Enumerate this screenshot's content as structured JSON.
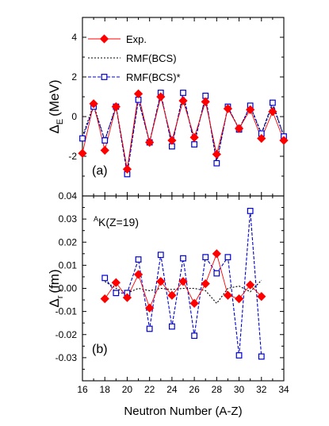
{
  "chart_data": [
    {
      "type": "line",
      "panel_label": "(a)",
      "ylabel_main": "Δ",
      "ylabel_sub": "E",
      "ylabel_unit": "(MeV)",
      "xlim": [
        16,
        34
      ],
      "ylim": [
        -4,
        5
      ],
      "yticks": [
        -4,
        -2,
        0,
        2,
        4
      ],
      "ytick_labels": [
        "",
        "-2",
        "0",
        "2",
        "4"
      ],
      "grid": false,
      "legend_position": "top-left",
      "series": [
        {
          "name": "Exp.",
          "style": "solid",
          "marker": "filled-diamond",
          "color": "#ff0000",
          "x": [
            16,
            17,
            18,
            19,
            20,
            21,
            22,
            23,
            24,
            25,
            26,
            27,
            28,
            29,
            30,
            31,
            32,
            33,
            34
          ],
          "y": [
            -1.85,
            0.65,
            -1.7,
            0.5,
            -2.65,
            1.15,
            -1.3,
            1.0,
            -1.2,
            0.8,
            -1.05,
            0.75,
            -1.9,
            0.4,
            -0.6,
            0.35,
            -1.1,
            0.25,
            -1.2
          ]
        },
        {
          "name": "RMF(BCS)",
          "style": "dotted",
          "marker": "none",
          "color": "#000000",
          "x": [
            16,
            17,
            18,
            19,
            20,
            21,
            22,
            23,
            24,
            25,
            26,
            27,
            28,
            29,
            30,
            31,
            32,
            33,
            34
          ],
          "y": [
            -1.0,
            0.6,
            -1.2,
            0.55,
            -2.7,
            0.9,
            -1.3,
            1.1,
            -1.35,
            1.0,
            -1.2,
            0.95,
            -2.2,
            0.45,
            -0.6,
            0.5,
            -0.9,
            0.6,
            -1.0
          ]
        },
        {
          "name": "RMF(BCS)*",
          "style": "dashed",
          "marker": "open-square",
          "color": "#0000cc",
          "x": [
            16,
            17,
            18,
            19,
            20,
            21,
            22,
            23,
            24,
            25,
            26,
            27,
            28,
            29,
            30,
            31,
            32,
            33,
            34
          ],
          "y": [
            -1.1,
            0.5,
            -1.2,
            0.5,
            -2.9,
            0.85,
            -1.3,
            1.2,
            -1.5,
            1.2,
            -1.4,
            1.05,
            -2.35,
            0.5,
            -0.65,
            0.55,
            -0.85,
            0.7,
            -1.0
          ]
        }
      ]
    },
    {
      "type": "line",
      "panel_label": "(b)",
      "annotation_sup": "A",
      "annotation_text": "K(Z=19)",
      "ylabel_main": "Δ",
      "ylabel_sub": "r",
      "ylabel_unit": "(fm)",
      "xlabel": "Neutron Number (A-Z)",
      "xlim": [
        16,
        34
      ],
      "ylim": [
        -0.04,
        0.04
      ],
      "xticks": [
        16,
        18,
        20,
        22,
        24,
        26,
        28,
        30,
        32,
        34
      ],
      "yticks": [
        -0.03,
        -0.02,
        -0.01,
        0.0,
        0.01,
        0.02,
        0.03,
        0.04
      ],
      "ytick_labels": [
        "-0.03",
        "-0.02",
        "-0.01",
        "0.00",
        "0.01",
        "0.02",
        "0.03",
        "0.04"
      ],
      "grid": false,
      "series": [
        {
          "name": "Exp.",
          "style": "solid",
          "marker": "filled-diamond",
          "color": "#ff0000",
          "x": [
            18,
            19,
            20,
            21,
            22,
            23,
            24,
            25,
            26,
            27,
            28,
            29,
            30,
            31,
            32
          ],
          "y": [
            -0.0045,
            0.0025,
            -0.004,
            0.006,
            -0.0085,
            0.003,
            -0.003,
            0.003,
            -0.0065,
            0.002,
            0.015,
            -0.003,
            -0.0045,
            0.0015,
            -0.0035
          ]
        },
        {
          "name": "RMF(BCS)",
          "style": "dotted",
          "marker": "none",
          "color": "#000000",
          "x": [
            18,
            19,
            20,
            21,
            22,
            23,
            24,
            25,
            26,
            27,
            28,
            29,
            30,
            31,
            32
          ],
          "y": [
            0.003,
            0.0,
            -0.002,
            0.0,
            -0.001,
            0.0,
            -0.0005,
            0.0,
            0.0,
            -0.001,
            -0.0065,
            0.0,
            0.001,
            -0.0015,
            0.0035
          ]
        },
        {
          "name": "RMF(BCS)*",
          "style": "dashed",
          "marker": "open-square",
          "color": "#0000cc",
          "x": [
            18,
            19,
            20,
            21,
            22,
            23,
            24,
            25,
            26,
            27,
            28,
            29,
            30,
            31,
            32
          ],
          "y": [
            0.0045,
            -0.002,
            -0.002,
            0.0125,
            -0.0175,
            0.0145,
            -0.0165,
            0.013,
            -0.0205,
            0.0135,
            0.0065,
            0.0135,
            -0.029,
            0.0335,
            -0.0295
          ]
        }
      ]
    }
  ]
}
